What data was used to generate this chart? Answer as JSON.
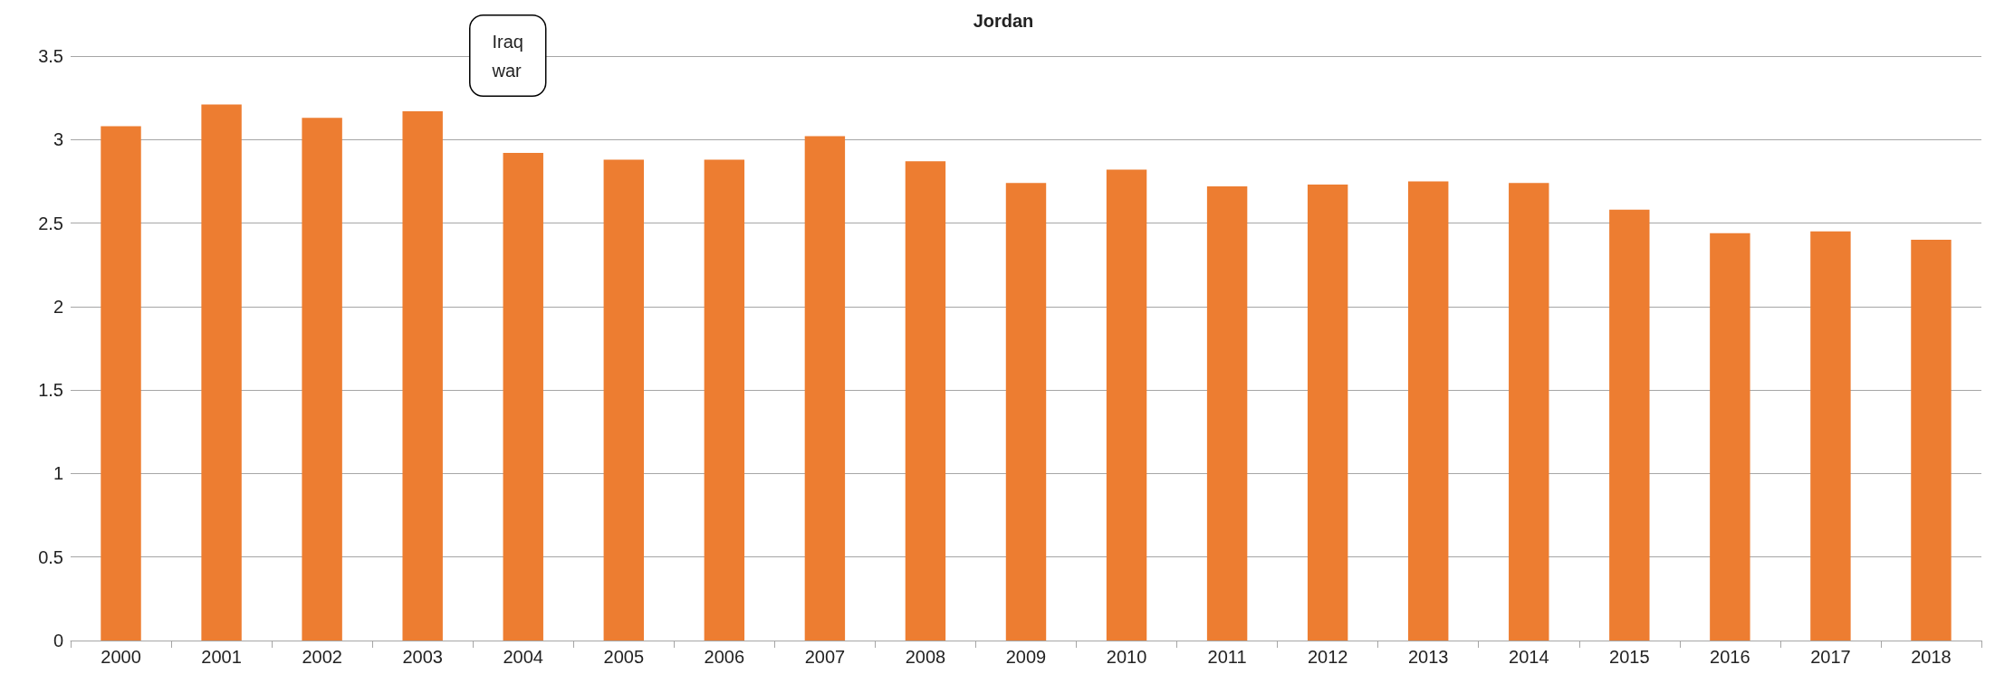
{
  "chart_data": {
    "type": "bar",
    "title": "Jordan",
    "categories": [
      "2000",
      "2001",
      "2002",
      "2003",
      "2004",
      "2005",
      "2006",
      "2007",
      "2008",
      "2009",
      "2010",
      "2011",
      "2012",
      "2013",
      "2014",
      "2015",
      "2016",
      "2017",
      "2018"
    ],
    "values": [
      3.08,
      3.21,
      3.13,
      3.17,
      2.92,
      2.88,
      2.88,
      3.02,
      2.87,
      2.74,
      2.82,
      2.72,
      2.73,
      2.75,
      2.74,
      2.58,
      2.44,
      2.45,
      2.4
    ],
    "color": "#ed7d31",
    "ylim": [
      0,
      3.5
    ],
    "yticks": [
      0,
      0.5,
      1,
      1.5,
      2,
      2.5,
      3,
      3.5
    ],
    "grid": "y",
    "annotations": [
      "Iraq war"
    ]
  }
}
